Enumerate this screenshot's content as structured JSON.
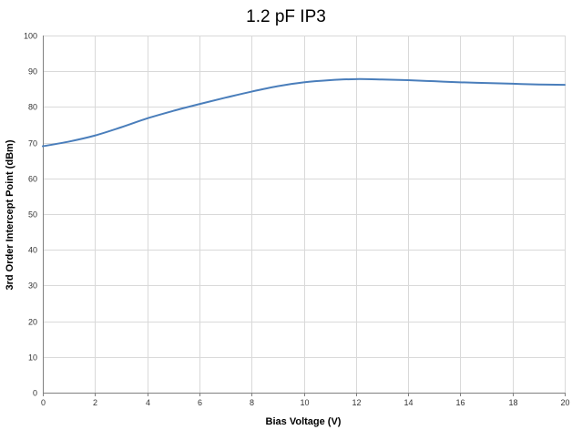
{
  "chart_data": {
    "type": "line",
    "title": "1.2 pF IP3",
    "xlabel": "Bias Voltage (V)",
    "ylabel": "3rd Order Intercept Point (dBm)",
    "xlim": [
      0,
      20
    ],
    "ylim": [
      0,
      100
    ],
    "x_ticks": [
      0,
      2,
      4,
      6,
      8,
      10,
      12,
      14,
      16,
      18,
      20
    ],
    "y_ticks": [
      0,
      10,
      20,
      30,
      40,
      50,
      60,
      70,
      80,
      90,
      100
    ],
    "grid": true,
    "legend": "none",
    "series_color": "#4a7ebb",
    "series": [
      {
        "x": [
          0,
          1,
          2,
          3,
          4,
          5,
          6,
          7,
          8,
          9,
          10,
          11,
          12,
          13,
          14,
          15,
          16,
          17,
          18,
          19,
          20
        ],
        "values": [
          69,
          70.3,
          72,
          74.3,
          76.8,
          78.9,
          80.8,
          82.6,
          84.3,
          85.8,
          86.9,
          87.5,
          87.8,
          87.7,
          87.5,
          87.2,
          86.9,
          86.7,
          86.5,
          86.3,
          86.2
        ]
      }
    ]
  }
}
